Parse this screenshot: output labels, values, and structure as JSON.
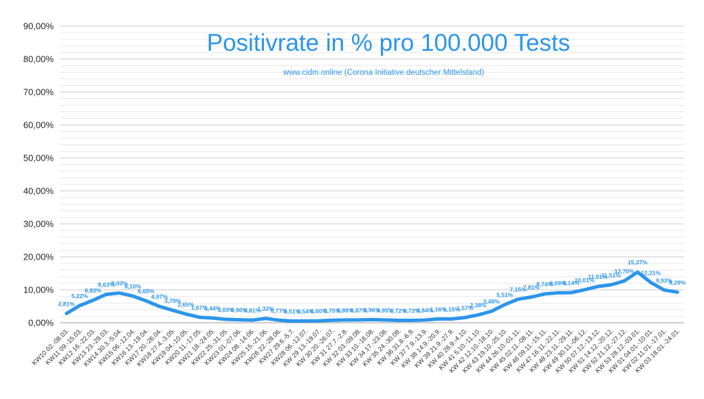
{
  "chart_data": {
    "type": "line",
    "title": "Positivrate in % pro 100.000 Tests",
    "subtitle": "www.cidm.online (Corona Initiative deutscher Mittelstand)",
    "xlabel": "",
    "ylabel": "",
    "ylim": [
      0,
      90
    ],
    "yticks": [
      "0,00%",
      "10,00%",
      "20,00%",
      "30,00%",
      "40,00%",
      "50,00%",
      "60,00%",
      "70,00%",
      "80,00%",
      "90,00%"
    ],
    "grid": true,
    "line_color": "#2c95ea",
    "categories": [
      "KW10 02.-08.03.",
      "KW11 09.-15.03.",
      "KW12 16.-22.03.",
      "KW13 23.-29.03.",
      "KW14 30.3.-5.04.",
      "KW15 06.-12.04.",
      "KW16 13.-19.04.",
      "KW17 20.-26.04.",
      "KW18 27.4.-3.05.",
      "KW19 04.-10.05.",
      "KW20 11.-17.05.",
      "KW21 18.-24.05.",
      "KW22 25.-31.05.",
      "KW23 01.-07.06.",
      "KW24 08.-14.06.",
      "KW25 15.-21.06.",
      "KW26 22.-28.06.",
      "KW27 29.6.-5.7.",
      "KW28 06.-12.07.",
      "KW 29 13.-19.07.",
      "KW 30 20.-26.07.",
      "KW 31 27.7.-2.8.",
      "KW 32 03.-09.08.",
      "KW 33 10.-16.08.",
      "KW 34 17.-23.08.",
      "KW 35 24.-30.08.",
      "KW 36 31.8.-6.9.",
      "KW 37 7.9.-13.9.",
      "KW 38 14.9.-20.9.",
      "KW 39 21.9.-27.9.",
      "KW 40 28.9.-4.10.",
      "KW 41 5.10.-11.10.",
      "KW 42 12.10.-18.10.",
      "KW 43 19.10.-25.10.",
      "KW 44 26.10.-01.11.",
      "KW 45 02.11.-08.11.",
      "KW 46 09.11.-15.11.",
      "KW 47 16.11.-22.11.",
      "KW 48 23.11.-29.11.",
      "KW 49 30.11.-06.12.",
      "KW 50 07.12.-13.12.",
      "KW 51 14.12.-20.12.",
      "KW 52 21.12.-27.12.",
      "KW 53 28.12.-03.01.",
      "KW 01 04.01.-10.01.",
      "KW 02 11.01.-17.01.",
      "KW 03 18.01.-24.01."
    ],
    "values": [
      2.81,
      5.22,
      6.83,
      8.63,
      9.03,
      8.1,
      6.65,
      4.97,
      3.79,
      2.65,
      1.67,
      1.44,
      1.03,
      0.9,
      0.81,
      1.32,
      0.77,
      0.51,
      0.54,
      0.6,
      0.75,
      0.86,
      0.87,
      0.96,
      0.85,
      0.72,
      0.72,
      0.84,
      1.16,
      1.15,
      1.57,
      2.38,
      3.49,
      5.51,
      7.15,
      7.81,
      8.74,
      9.09,
      9.14,
      10.01,
      11.01,
      11.51,
      12.7,
      15.37,
      12.21,
      9.93,
      9.29
    ],
    "data_labels": [
      "2,81%",
      "5,22%",
      "6,83%",
      "8,63%",
      "9,03%",
      "8,10%",
      "6,65%",
      "4,97%",
      "3,79%",
      "2,65%",
      "1,67%",
      "1,44%",
      "1,03%",
      "0,90%",
      "0,81%",
      "1,32%",
      "0,77%",
      "0,51%",
      "0,54%",
      "0,60%",
      "0,75%",
      "0,86%",
      "0,87%",
      "0,96%",
      "0,85%",
      "0,72%",
      "0,72%",
      "0,84%",
      "1,16%",
      "1,15%",
      "1,57%",
      "2,38%",
      "3,49%",
      "5,51%",
      "7,15%",
      "7,81%",
      "8,74%",
      "9,09%",
      "9,14%",
      "10,01%",
      "11,01%",
      "11,51%",
      "12,70%",
      "15,37%",
      "12,21%",
      "9,93%",
      "9,29%"
    ]
  }
}
